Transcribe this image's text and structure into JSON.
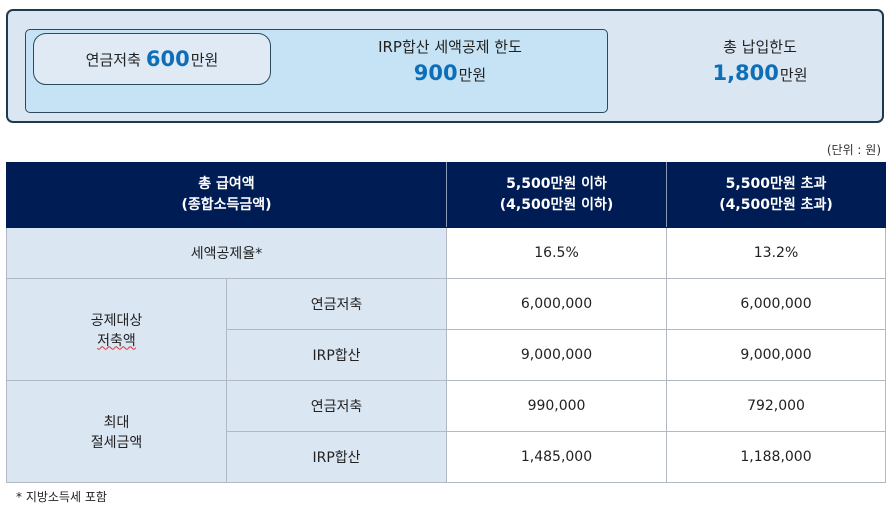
{
  "summary": {
    "pension_label": "연금저축",
    "pension_amount": "600",
    "pension_unit": "만원",
    "irp_title": "IRP합산 세액공제 한도",
    "irp_amount": "900",
    "irp_unit": "만원",
    "total_title": "총 납입한도",
    "total_amount": "1,800",
    "total_unit": "만원"
  },
  "unit_note": "(단위 : 원)",
  "table": {
    "header": {
      "col1_line1": "총 급여액",
      "col1_line2": "(종합소득금액)",
      "col2_line1": "5,500만원 이하",
      "col2_line2": "(4,500만원 이하)",
      "col3_line1": "5,500만원 초과",
      "col3_line2": "(4,500만원 초과)"
    },
    "rate_row": {
      "label": "세액공제율*",
      "low": "16.5%",
      "high": "13.2%"
    },
    "deductible": {
      "group_line1": "공제대상",
      "group_line2": "저축액",
      "rows": [
        {
          "label": "연금저축",
          "low": "6,000,000",
          "high": "6,000,000"
        },
        {
          "label": "IRP합산",
          "low": "9,000,000",
          "high": "9,000,000"
        }
      ]
    },
    "max_saving": {
      "group_line1": "최대",
      "group_line2": "절세금액",
      "rows": [
        {
          "label": "연금저축",
          "low": "990,000",
          "high": "792,000"
        },
        {
          "label": "IRP합산",
          "low": "1,485,000",
          "high": "1,188,000"
        }
      ]
    }
  },
  "footnote": "* 지방소득세 포함"
}
